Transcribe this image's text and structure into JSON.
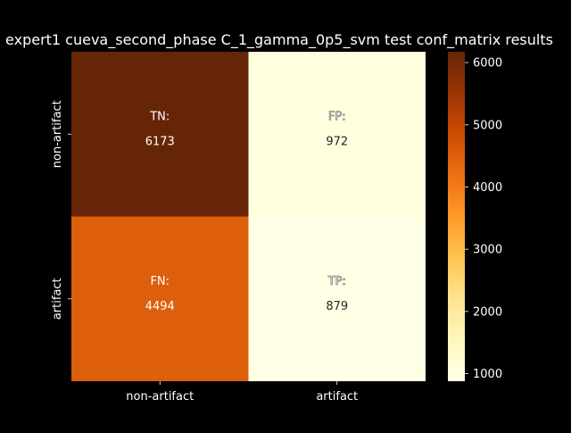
{
  "chart_data": {
    "type": "heatmap",
    "title": "expert1 cueva_second_phase C_1_gamma_0p5_svm test conf_matrix results",
    "xlabel": "",
    "ylabel": "",
    "x_categories": [
      "non-artifact",
      "artifact"
    ],
    "y_categories": [
      "non-artifact",
      "artifact"
    ],
    "cells": [
      [
        {
          "label": "TN:",
          "value": 6173
        },
        {
          "label": "FP:",
          "value": 972
        }
      ],
      [
        {
          "label": "FN:",
          "value": 4494
        },
        {
          "label": "TP:",
          "value": 879
        }
      ]
    ],
    "colormap": "YlOrBr",
    "colorbar": {
      "min": 879,
      "max": 6173,
      "ticks": [
        1000,
        2000,
        3000,
        4000,
        5000,
        6000
      ]
    },
    "background": "#000000",
    "text_color": "#ffffff"
  }
}
